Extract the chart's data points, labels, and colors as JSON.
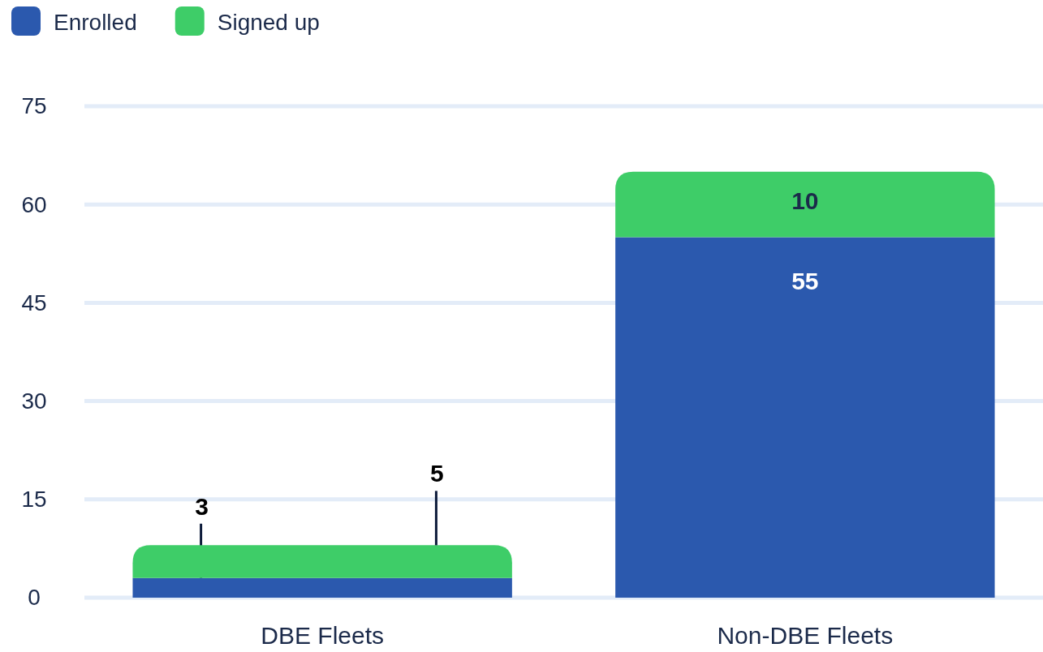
{
  "chart_data": {
    "type": "bar",
    "stacked": true,
    "categories": [
      "DBE Fleets",
      "Non-DBE Fleets"
    ],
    "series": [
      {
        "name": "Enrolled",
        "color": "#2b59ae",
        "values": [
          3,
          55
        ]
      },
      {
        "name": "Signed up",
        "color": "#3ecd68",
        "values": [
          5,
          10
        ]
      }
    ],
    "ylim": [
      0,
      75
    ],
    "yticks": [
      0,
      15,
      30,
      45,
      60,
      75
    ],
    "grid": "y",
    "legend": "top left",
    "data_labels": true
  }
}
